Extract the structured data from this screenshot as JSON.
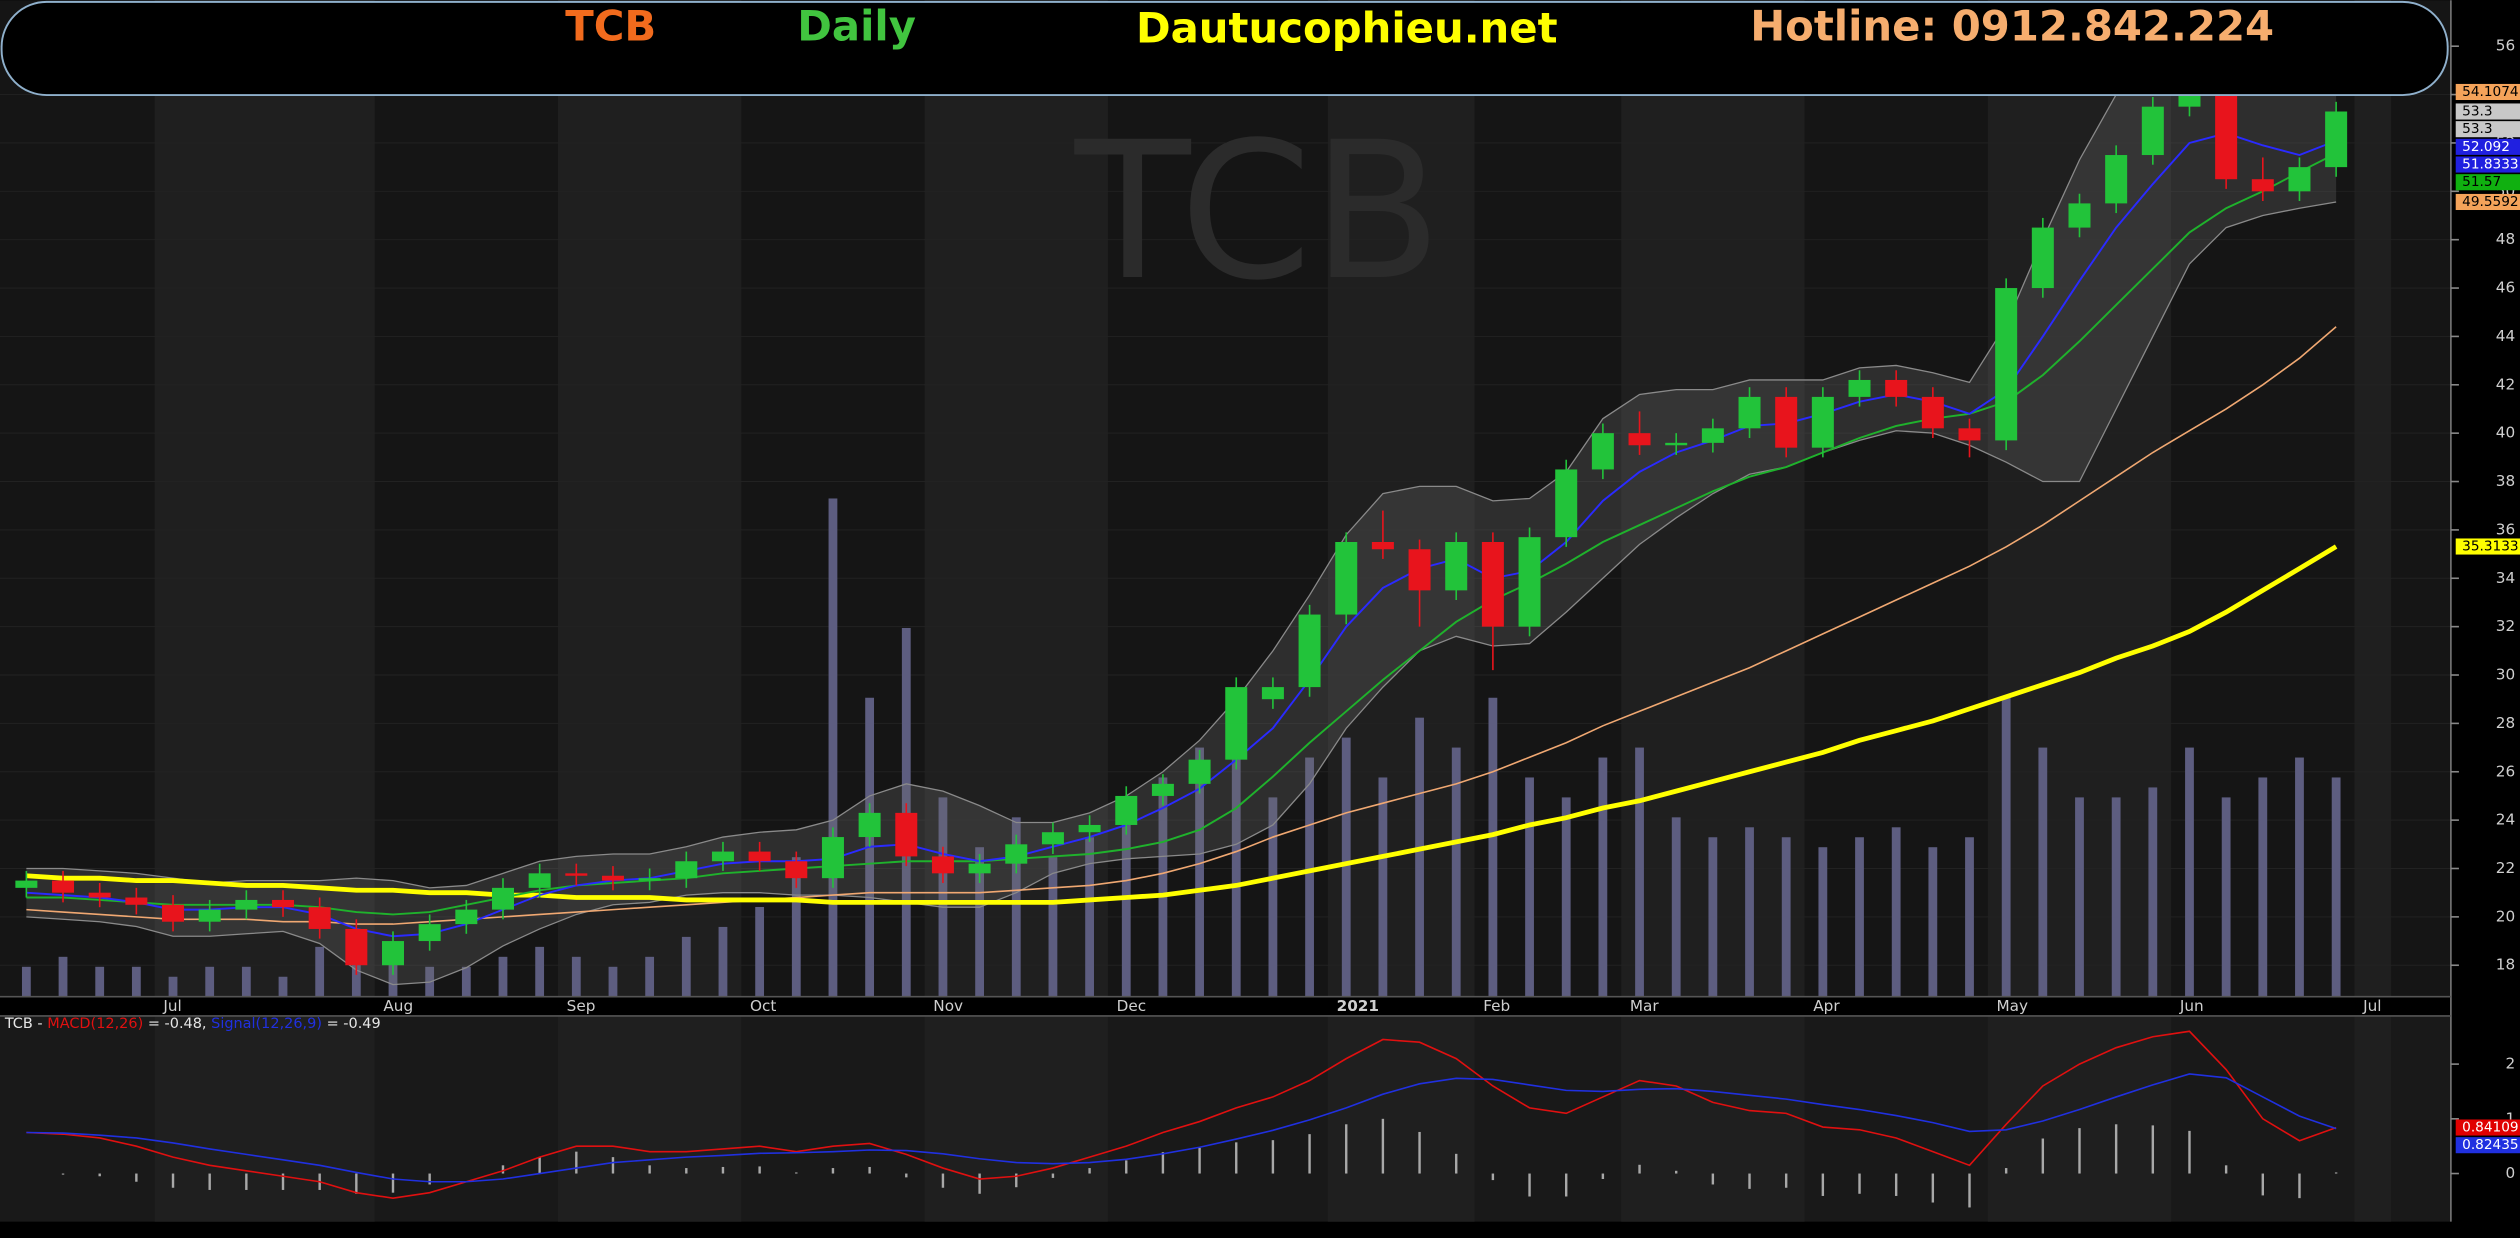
{
  "header": {
    "symbol": "TCB",
    "period": "Daily",
    "site": "Dautucophieu.net",
    "hotline": "Hotline: 0912.842.224"
  },
  "chart_data": [
    {
      "type": "candlestick",
      "watermark": "TCB",
      "categories": [
        null,
        null,
        null,
        null,
        "Jul",
        null,
        null,
        null,
        null,
        null,
        "Aug",
        null,
        null,
        null,
        null,
        "Sep",
        null,
        null,
        null,
        null,
        "Oct",
        null,
        null,
        null,
        null,
        "Nov",
        null,
        null,
        null,
        null,
        "Dec",
        null,
        null,
        null,
        null,
        null,
        "2021",
        null,
        null,
        null,
        "Feb",
        null,
        null,
        null,
        "Mar",
        null,
        null,
        null,
        null,
        "Apr",
        null,
        null,
        null,
        null,
        "May",
        null,
        null,
        null,
        null,
        "Jun",
        null,
        null,
        null,
        null,
        "Jul"
      ],
      "open": [
        21.2,
        21.5,
        21.0,
        20.8,
        20.5,
        19.8,
        20.3,
        20.7,
        20.4,
        19.5,
        18.0,
        19.0,
        19.7,
        20.3,
        21.2,
        21.8,
        21.7,
        21.5,
        21.6,
        22.3,
        22.7,
        22.3,
        21.6,
        23.3,
        24.3,
        22.5,
        21.8,
        22.2,
        23.0,
        23.5,
        23.8,
        25.0,
        25.5,
        26.5,
        29.0,
        29.5,
        32.5,
        35.5,
        35.2,
        33.5,
        35.5,
        32.0,
        35.7,
        38.5,
        40.0,
        39.5,
        39.6,
        40.2,
        41.5,
        39.4,
        41.5,
        42.2,
        41.5,
        40.2,
        39.7,
        46.0,
        48.5,
        49.5,
        51.5,
        53.5,
        54.5,
        50.5,
        50.0,
        51.0,
        null
      ],
      "high": [
        21.9,
        21.9,
        21.4,
        21.2,
        20.9,
        20.7,
        21.1,
        21.1,
        20.8,
        19.9,
        19.4,
        20.1,
        20.7,
        21.6,
        22.2,
        22.2,
        22.1,
        22.0,
        22.7,
        23.1,
        23.1,
        22.7,
        23.7,
        24.7,
        24.7,
        22.9,
        22.6,
        23.4,
        23.9,
        24.2,
        25.4,
        25.9,
        26.9,
        29.9,
        29.9,
        32.9,
        35.9,
        36.8,
        35.6,
        35.9,
        35.9,
        36.1,
        38.9,
        40.4,
        40.9,
        40.0,
        40.6,
        41.9,
        41.9,
        41.9,
        42.6,
        42.6,
        41.9,
        40.6,
        46.4,
        48.9,
        49.9,
        51.9,
        53.9,
        55.6,
        54.9,
        51.4,
        51.4,
        53.7,
        null
      ],
      "low": [
        20.8,
        20.6,
        20.4,
        20.1,
        19.4,
        19.4,
        19.9,
        20.0,
        19.1,
        17.6,
        17.6,
        18.6,
        19.3,
        19.9,
        20.8,
        21.3,
        21.1,
        21.1,
        21.2,
        21.9,
        21.9,
        21.2,
        21.2,
        22.9,
        22.1,
        21.4,
        21.4,
        21.8,
        22.6,
        23.1,
        23.4,
        24.6,
        25.1,
        26.1,
        28.6,
        29.1,
        32.1,
        34.8,
        32.0,
        33.1,
        30.2,
        31.6,
        35.3,
        38.1,
        39.1,
        39.1,
        39.2,
        39.8,
        39.0,
        39.0,
        41.1,
        41.1,
        39.8,
        39.0,
        39.3,
        45.6,
        48.1,
        49.1,
        51.1,
        53.1,
        50.1,
        49.6,
        49.6,
        50.6,
        null
      ],
      "close": [
        21.5,
        21.0,
        20.8,
        20.5,
        19.8,
        20.3,
        20.7,
        20.4,
        19.5,
        18.0,
        19.0,
        19.7,
        20.3,
        21.2,
        21.8,
        21.7,
        21.5,
        21.6,
        22.3,
        22.7,
        22.3,
        21.6,
        23.3,
        24.3,
        22.5,
        21.8,
        22.2,
        23.0,
        23.5,
        23.8,
        25.0,
        25.5,
        26.5,
        29.5,
        29.5,
        32.5,
        35.5,
        35.2,
        33.5,
        35.5,
        32.0,
        35.7,
        38.5,
        40.0,
        39.5,
        39.6,
        40.2,
        41.5,
        39.4,
        41.5,
        42.2,
        41.5,
        40.2,
        39.7,
        46.0,
        48.5,
        49.5,
        51.5,
        53.5,
        54.5,
        50.5,
        50.0,
        51.0,
        53.3,
        null
      ],
      "up_color": "#22c33a",
      "down_color": "#e8141c",
      "bollinger": {
        "color": "#8a8a8a",
        "fill": "rgba(110,110,110,0.28)",
        "upper": [
          22.0,
          22.0,
          21.9,
          21.8,
          21.6,
          21.4,
          21.5,
          21.5,
          21.5,
          21.6,
          21.5,
          21.2,
          21.3,
          21.8,
          22.3,
          22.5,
          22.6,
          22.6,
          22.9,
          23.3,
          23.5,
          23.6,
          24.0,
          25.0,
          25.5,
          25.2,
          24.6,
          23.9,
          23.9,
          24.3,
          25.0,
          26.0,
          27.3,
          29.0,
          31.0,
          33.3,
          35.8,
          37.5,
          37.8,
          37.8,
          37.2,
          37.3,
          38.4,
          40.6,
          41.6,
          41.8,
          41.8,
          42.2,
          42.2,
          42.2,
          42.7,
          42.8,
          42.5,
          42.1,
          44.5,
          48.0,
          51.3,
          54.0,
          55.8,
          56.2,
          56.0,
          55.6,
          54.8,
          54.1074,
          null
        ],
        "lower": [
          20.0,
          19.9,
          19.8,
          19.6,
          19.2,
          19.2,
          19.3,
          19.4,
          18.9,
          17.8,
          17.2,
          17.3,
          17.9,
          18.8,
          19.5,
          20.1,
          20.5,
          20.6,
          20.9,
          21.0,
          21.0,
          20.9,
          20.9,
          20.8,
          20.6,
          20.4,
          20.4,
          21.0,
          21.8,
          22.2,
          22.4,
          22.5,
          22.6,
          23.0,
          23.8,
          25.5,
          27.8,
          29.5,
          31.0,
          31.6,
          31.2,
          31.3,
          32.6,
          34.0,
          35.4,
          36.5,
          37.5,
          38.3,
          38.6,
          39.2,
          39.7,
          40.1,
          40.0,
          39.5,
          38.8,
          38.0,
          38.0,
          41.0,
          44.0,
          47.0,
          48.5,
          49.0,
          49.3,
          49.5592,
          null
        ]
      },
      "series": [
        {
          "color": "#f0a872",
          "width": 1,
          "values": [
            20.3,
            20.2,
            20.1,
            20.0,
            19.9,
            19.9,
            19.9,
            19.8,
            19.8,
            19.7,
            19.7,
            19.8,
            19.9,
            20.0,
            20.1,
            20.2,
            20.3,
            20.4,
            20.5,
            20.6,
            20.7,
            20.8,
            20.9,
            21.0,
            21.0,
            21.0,
            21.0,
            21.1,
            21.2,
            21.3,
            21.5,
            21.8,
            22.2,
            22.7,
            23.3,
            23.8,
            24.3,
            24.7,
            25.1,
            25.5,
            26.0,
            26.6,
            27.2,
            27.9,
            28.5,
            29.1,
            29.7,
            30.3,
            31.0,
            31.7,
            32.4,
            33.1,
            33.8,
            34.5,
            35.3,
            36.2,
            37.2,
            38.2,
            39.2,
            40.1,
            41.0,
            42.0,
            43.1,
            44.4,
            null
          ]
        },
        {
          "color": "#ffff00",
          "width": 3,
          "values": [
            21.7,
            21.6,
            21.6,
            21.5,
            21.5,
            21.4,
            21.3,
            21.3,
            21.2,
            21.1,
            21.1,
            21.0,
            21.0,
            20.9,
            20.9,
            20.8,
            20.8,
            20.8,
            20.7,
            20.7,
            20.7,
            20.7,
            20.6,
            20.6,
            20.6,
            20.6,
            20.6,
            20.6,
            20.6,
            20.7,
            20.8,
            20.9,
            21.1,
            21.3,
            21.6,
            21.9,
            22.2,
            22.5,
            22.8,
            23.1,
            23.4,
            23.8,
            24.1,
            24.5,
            24.8,
            25.2,
            25.6,
            26.0,
            26.4,
            26.8,
            27.3,
            27.7,
            28.1,
            28.6,
            29.1,
            29.6,
            30.1,
            30.7,
            31.2,
            31.8,
            32.6,
            33.5,
            34.4,
            35.3133,
            null
          ]
        },
        {
          "color": "#1fb22c",
          "width": 1.2,
          "values": [
            20.8,
            20.8,
            20.7,
            20.6,
            20.5,
            20.5,
            20.5,
            20.5,
            20.4,
            20.2,
            20.1,
            20.2,
            20.5,
            20.8,
            21.1,
            21.3,
            21.4,
            21.5,
            21.6,
            21.8,
            21.9,
            22.0,
            22.1,
            22.2,
            22.3,
            22.3,
            22.3,
            22.4,
            22.5,
            22.6,
            22.8,
            23.1,
            23.6,
            24.5,
            25.8,
            27.2,
            28.5,
            29.8,
            31.0,
            32.2,
            33.1,
            33.8,
            34.6,
            35.5,
            36.2,
            36.9,
            37.6,
            38.2,
            38.6,
            39.2,
            39.8,
            40.3,
            40.6,
            40.8,
            41.3,
            42.4,
            43.8,
            45.3,
            46.8,
            48.3,
            49.3,
            50.0,
            50.8,
            51.57,
            null
          ]
        },
        {
          "color": "#2a2aff",
          "width": 1.2,
          "values": [
            21.0,
            20.9,
            20.8,
            20.6,
            20.3,
            20.3,
            20.4,
            20.4,
            20.1,
            19.5,
            19.2,
            19.3,
            19.7,
            20.3,
            20.9,
            21.3,
            21.5,
            21.6,
            21.9,
            22.2,
            22.3,
            22.3,
            22.4,
            22.9,
            23.0,
            22.6,
            22.3,
            22.5,
            22.9,
            23.3,
            23.8,
            24.5,
            25.3,
            26.5,
            27.8,
            29.8,
            32.0,
            33.6,
            34.4,
            34.8,
            34.0,
            34.3,
            35.5,
            37.2,
            38.4,
            39.2,
            39.7,
            40.3,
            40.4,
            40.8,
            41.3,
            41.6,
            41.3,
            40.8,
            41.8,
            44.0,
            46.3,
            48.5,
            50.3,
            52.0,
            52.4,
            51.9,
            51.5,
            52.092,
            null
          ]
        },
        {
          "color": "#5d5d80",
          "axis": "y2",
          "kind": "bar",
          "values": [
            3,
            4,
            3,
            3,
            2,
            3,
            3,
            2,
            5,
            6,
            4,
            3,
            3,
            4,
            5,
            4,
            3,
            4,
            6,
            7,
            9,
            14,
            50,
            30,
            37,
            20,
            15,
            18,
            14,
            16,
            20,
            22,
            25,
            28,
            20,
            24,
            26,
            22,
            28,
            25,
            30,
            22,
            20,
            24,
            25,
            18,
            16,
            17,
            16,
            15,
            16,
            17,
            15,
            16,
            30,
            25,
            20,
            20,
            21,
            25,
            20,
            22,
            24,
            22,
            null
          ]
        }
      ],
      "price_labels": [
        {
          "value": 54.1074,
          "color": "#f4a35a",
          "text_color": "#000000"
        },
        {
          "value": 53.3,
          "color": "#c8c8c8",
          "text_color": "#000000"
        },
        {
          "value": 53.3,
          "color": "#c8c8c8",
          "text_color": "#000000"
        },
        {
          "value": 52.092,
          "color": "#2020e0",
          "text_color": "#ffffff"
        },
        {
          "value": 51.8333,
          "color": "#2020e0",
          "text_color": "#ffffff"
        },
        {
          "value": 51.57,
          "color": "#10b010",
          "text_color": "#000000"
        },
        {
          "value": 49.5592,
          "color": "#f4a35a",
          "text_color": "#000000"
        },
        {
          "value": 35.3133,
          "color": "#ffff00",
          "text_color": "#000000"
        }
      ],
      "ylim": [
        16.7,
        57.9
      ],
      "yticks": [
        18,
        20,
        22,
        24,
        26,
        28,
        30,
        32,
        34,
        36,
        38,
        40,
        42,
        44,
        46,
        48,
        50,
        52,
        54,
        56
      ],
      "y2lim": [
        0,
        100
      ],
      "grid": true
    },
    {
      "type": "macd",
      "title_prefix": "TCB -",
      "readouts": [
        "= -0.48,",
        "= -0.49"
      ],
      "series": [
        {
          "name": "MACD(12,26)",
          "color": "#e01010",
          "values": [
            0.75,
            0.72,
            0.65,
            0.5,
            0.3,
            0.15,
            0.05,
            -0.05,
            -0.15,
            -0.35,
            -0.45,
            -0.35,
            -0.15,
            0.05,
            0.3,
            0.5,
            0.5,
            0.4,
            0.4,
            0.45,
            0.5,
            0.4,
            0.5,
            0.55,
            0.35,
            0.1,
            -0.1,
            -0.05,
            0.1,
            0.3,
            0.5,
            0.75,
            0.95,
            1.2,
            1.4,
            1.7,
            2.1,
            2.45,
            2.4,
            2.1,
            1.6,
            1.2,
            1.1,
            1.4,
            1.7,
            1.6,
            1.3,
            1.15,
            1.1,
            0.85,
            0.8,
            0.65,
            0.4,
            0.15,
            0.9,
            1.6,
            2.0,
            2.3,
            2.5,
            2.6,
            1.9,
            1.0,
            0.6,
            0.84,
            null
          ]
        },
        {
          "name": "Signal(12,26,9)",
          "color": "#2030e0",
          "values": [
            0.75,
            0.74,
            0.7,
            0.65,
            0.56,
            0.45,
            0.35,
            0.25,
            0.15,
            0.02,
            -0.1,
            -0.15,
            -0.15,
            -0.1,
            0.0,
            0.1,
            0.2,
            0.25,
            0.3,
            0.33,
            0.37,
            0.38,
            0.4,
            0.43,
            0.42,
            0.36,
            0.27,
            0.2,
            0.18,
            0.2,
            0.26,
            0.36,
            0.48,
            0.63,
            0.79,
            0.98,
            1.2,
            1.45,
            1.64,
            1.74,
            1.72,
            1.62,
            1.52,
            1.5,
            1.54,
            1.55,
            1.5,
            1.43,
            1.36,
            1.26,
            1.17,
            1.06,
            0.93,
            0.77,
            0.8,
            0.96,
            1.17,
            1.4,
            1.62,
            1.82,
            1.75,
            1.4,
            1.05,
            0.82,
            null
          ]
        }
      ],
      "histogram": {
        "color": "#a8a8a8",
        "values": [
          0,
          -0.02,
          -0.05,
          -0.15,
          -0.26,
          -0.3,
          -0.3,
          -0.3,
          -0.3,
          -0.37,
          -0.35,
          -0.2,
          0,
          0.15,
          0.3,
          0.4,
          0.3,
          0.15,
          0.1,
          0.12,
          0.13,
          0.02,
          0.1,
          0.12,
          -0.07,
          -0.26,
          -0.37,
          -0.25,
          -0.08,
          0.1,
          0.24,
          0.39,
          0.47,
          0.57,
          0.61,
          0.72,
          0.9,
          1.0,
          0.76,
          0.36,
          -0.12,
          -0.42,
          -0.42,
          -0.1,
          0.16,
          0.05,
          -0.2,
          -0.28,
          -0.26,
          -0.41,
          -0.37,
          -0.41,
          -0.53,
          -0.62,
          0.1,
          0.64,
          0.83,
          0.9,
          0.88,
          0.78,
          0.15,
          -0.4,
          -0.45,
          0.02,
          null
        ]
      },
      "last_labels": [
        {
          "value": 0.84109,
          "color": "#e00000",
          "text_color": "#ffffff"
        },
        {
          "value": 0.82435,
          "color": "#2030e0",
          "text_color": "#ffffff"
        }
      ],
      "ylim": [
        -0.88,
        2.88
      ],
      "yticks": [
        0,
        1,
        2
      ]
    }
  ]
}
